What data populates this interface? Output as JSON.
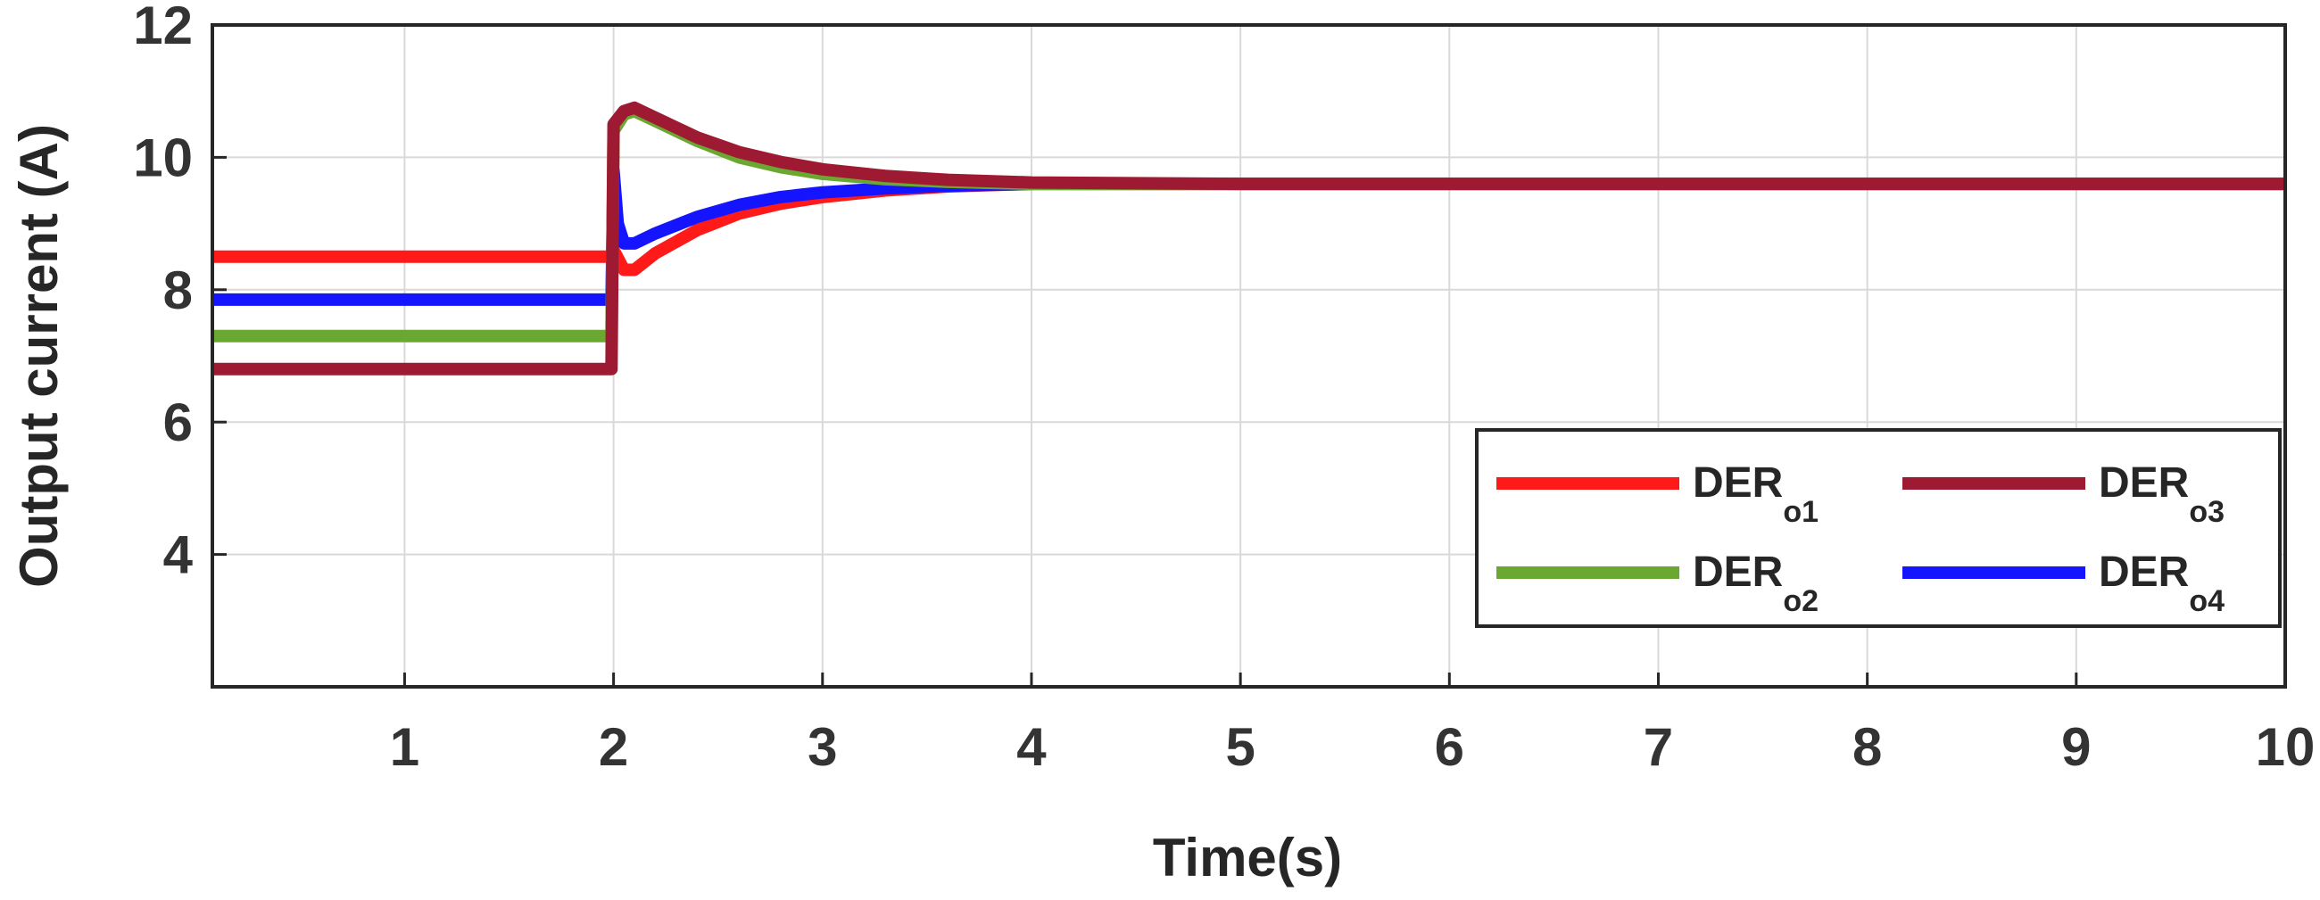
{
  "chart_data": {
    "type": "line",
    "xlabel": "Time(s)",
    "ylabel": "Output current (A)",
    "xlim": [
      0.08,
      10
    ],
    "ylim": [
      2,
      12
    ],
    "xticks": [
      1,
      2,
      3,
      4,
      5,
      6,
      7,
      8,
      9,
      10
    ],
    "yticks": [
      4,
      6,
      8,
      10,
      12
    ],
    "grid": true,
    "legend_position": "lower-right",
    "legend_columns": 2,
    "series": [
      {
        "name": "DER",
        "subscript": "o1",
        "color": "#ff1a1a",
        "x": [
          0.08,
          1.0,
          1.99,
          2.0,
          2.05,
          2.1,
          2.2,
          2.4,
          2.6,
          2.8,
          3.0,
          3.3,
          3.6,
          4.0,
          5,
          6,
          7,
          8,
          9,
          10
        ],
        "y": [
          8.5,
          8.5,
          8.5,
          8.6,
          8.3,
          8.3,
          8.55,
          8.9,
          9.15,
          9.3,
          9.4,
          9.5,
          9.56,
          9.6,
          9.6,
          9.6,
          9.6,
          9.6,
          9.6,
          9.6
        ]
      },
      {
        "name": "DER",
        "subscript": "o2",
        "color": "#6aa832",
        "x": [
          0.08,
          1.0,
          1.99,
          2.0,
          2.05,
          2.1,
          2.2,
          2.4,
          2.6,
          2.8,
          3.0,
          3.3,
          3.6,
          4.0,
          5,
          6,
          7,
          8,
          9,
          10
        ],
        "y": [
          7.3,
          7.3,
          7.3,
          10.4,
          10.65,
          10.7,
          10.55,
          10.25,
          10.0,
          9.85,
          9.75,
          9.67,
          9.63,
          9.6,
          9.6,
          9.6,
          9.6,
          9.6,
          9.6,
          9.6
        ]
      },
      {
        "name": "DER",
        "subscript": "o3",
        "color": "#9e1a32",
        "x": [
          0.08,
          1.0,
          1.99,
          2.0,
          2.05,
          2.1,
          2.2,
          2.4,
          2.6,
          2.8,
          3.0,
          3.3,
          3.6,
          4.0,
          5,
          6,
          7,
          8,
          9,
          10
        ],
        "y": [
          6.8,
          6.8,
          6.8,
          10.5,
          10.7,
          10.75,
          10.6,
          10.3,
          10.08,
          9.93,
          9.82,
          9.72,
          9.66,
          9.62,
          9.6,
          9.6,
          9.6,
          9.6,
          9.6,
          9.6
        ]
      },
      {
        "name": "DER",
        "subscript": "o4",
        "color": "#1414ff",
        "x": [
          0.08,
          1.0,
          1.99,
          2.0,
          2.02,
          2.05,
          2.1,
          2.2,
          2.4,
          2.6,
          2.8,
          3.0,
          3.3,
          3.6,
          4.0,
          5,
          6,
          7,
          8,
          9,
          10
        ],
        "y": [
          7.85,
          7.85,
          7.85,
          9.8,
          9.0,
          8.7,
          8.7,
          8.85,
          9.1,
          9.28,
          9.4,
          9.47,
          9.53,
          9.57,
          9.6,
          9.6,
          9.6,
          9.6,
          9.6,
          9.6,
          9.6
        ]
      }
    ]
  }
}
